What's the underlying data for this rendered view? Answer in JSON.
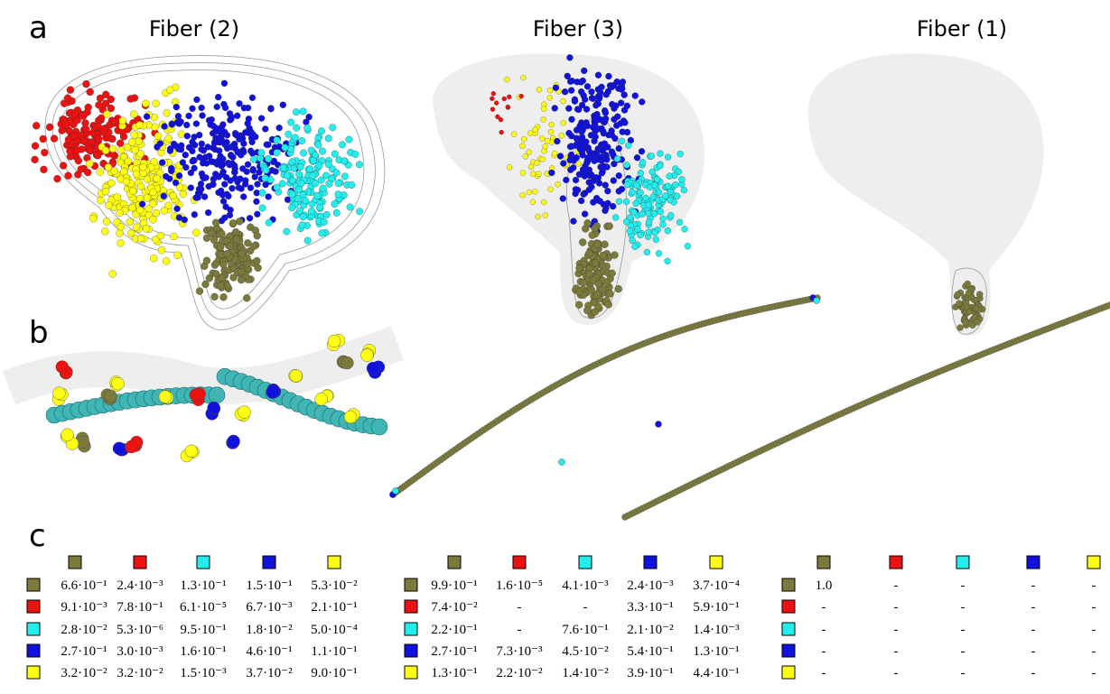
{
  "panel_a": {
    "label": "a",
    "titles": [
      "Fiber (2)",
      "Fiber (3)",
      "Fiber (1)"
    ]
  },
  "panel_b": {
    "label": "b"
  },
  "panel_c": {
    "label": "c",
    "state_colors": [
      "#7b7a3c",
      "#ee1111",
      "#22eeee",
      "#1111dd",
      "#ffff11"
    ],
    "matrices": [
      {
        "rows": [
          [
            "6.6·10⁻¹",
            "2.4·10⁻³",
            "1.3·10⁻¹",
            "1.5·10⁻¹",
            "5.3·10⁻²"
          ],
          [
            "9.1·10⁻³",
            "7.8·10⁻¹",
            "6.1·10⁻⁵",
            "6.7·10⁻³",
            "2.1·10⁻¹"
          ],
          [
            "2.8·10⁻²",
            "5.3·10⁻⁶",
            "9.5·10⁻¹",
            "1.8·10⁻²",
            "5.0·10⁻⁴"
          ],
          [
            "2.7·10⁻¹",
            "3.0·10⁻³",
            "1.6·10⁻¹",
            "4.6·10⁻¹",
            "1.1·10⁻¹"
          ],
          [
            "3.2·10⁻²",
            "3.2·10⁻²",
            "1.5·10⁻³",
            "3.7·10⁻²",
            "9.0·10⁻¹"
          ]
        ]
      },
      {
        "rows": [
          [
            "9.9·10⁻¹",
            "1.6·10⁻⁵",
            "4.1·10⁻³",
            "2.4·10⁻³",
            "3.7·10⁻⁴"
          ],
          [
            "7.4·10⁻²",
            "-",
            "-",
            "3.3·10⁻¹",
            "5.9·10⁻¹"
          ],
          [
            "2.2·10⁻¹",
            "-",
            "7.6·10⁻¹",
            "2.1·10⁻²",
            "1.4·10⁻³"
          ],
          [
            "2.7·10⁻¹",
            "7.3·10⁻³",
            "4.5·10⁻²",
            "5.4·10⁻¹",
            "1.3·10⁻¹"
          ],
          [
            "1.3·10⁻¹",
            "2.2·10⁻²",
            "1.4·10⁻²",
            "3.9·10⁻¹",
            "4.4·10⁻¹"
          ]
        ]
      },
      {
        "rows": [
          [
            "1.0",
            "-",
            "-",
            "-",
            "-"
          ],
          [
            "-",
            "-",
            "-",
            "-",
            "-"
          ],
          [
            "-",
            "-",
            "-",
            "-",
            "-"
          ],
          [
            "-",
            "-",
            "-",
            "-",
            "-"
          ],
          [
            "-",
            "-",
            "-",
            "-",
            "-"
          ]
        ]
      }
    ]
  }
}
